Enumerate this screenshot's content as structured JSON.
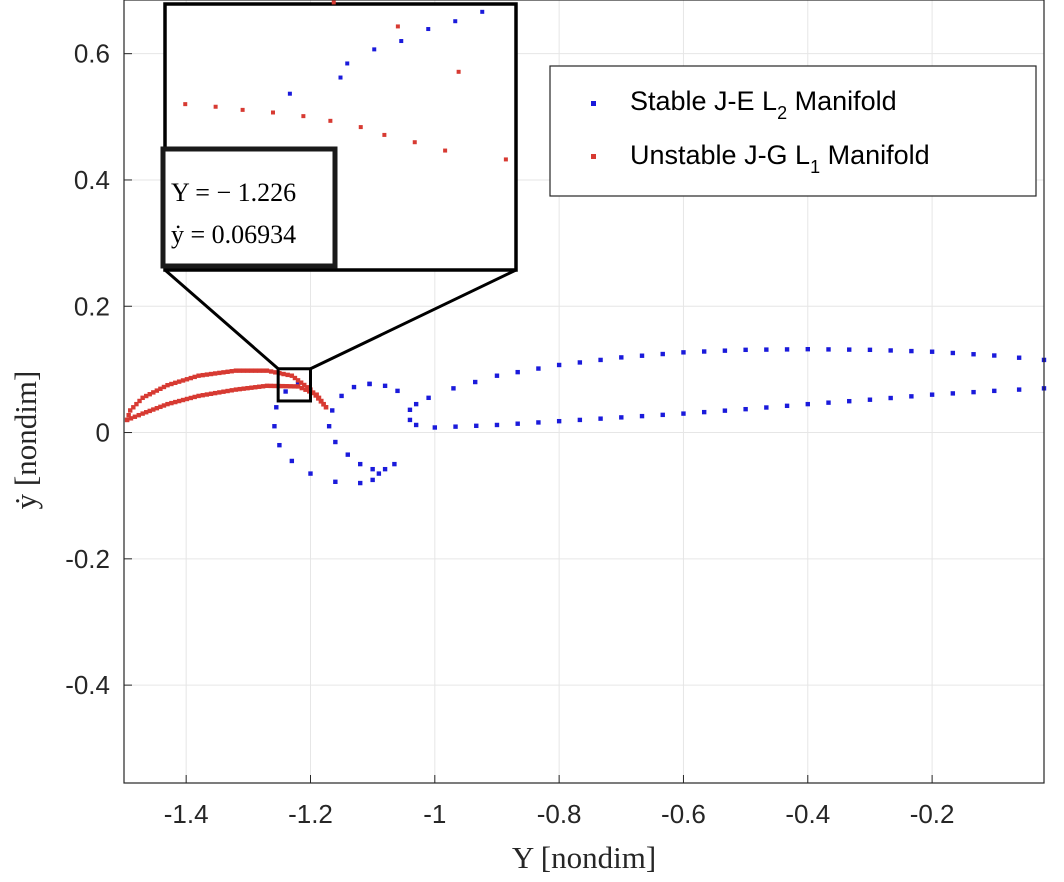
{
  "chart_data": {
    "type": "scatter",
    "title": "",
    "xlabel": "Y [nondim]",
    "ylabel": "ẏ [nondim]",
    "xlim": [
      -1.5,
      -0.02
    ],
    "ylim": [
      -0.555,
      0.685
    ],
    "grid": true,
    "x_ticks": [
      -1.4,
      -1.2,
      -1,
      -0.8,
      -0.6,
      -0.4,
      -0.2
    ],
    "x_tick_labels": [
      "-1.4",
      "-1.2",
      "-1",
      "-0.8",
      "-0.6",
      "-0.4",
      "-0.2"
    ],
    "y_ticks": [
      0.6,
      0.4,
      0.2,
      0,
      -0.2,
      -0.4
    ],
    "y_tick_labels": [
      "0.6",
      "0.4",
      "0.2",
      "0",
      "-0.2",
      "-0.4"
    ],
    "legend": {
      "position": "top-right",
      "entries": [
        {
          "text": "Stable J-E L",
          "subscript": "2",
          "suffix": " Manifold",
          "color": "#1a1adb"
        },
        {
          "text": "Unstable J-G L",
          "subscript": "1",
          "suffix": " Manifold",
          "color": "#d73a32"
        }
      ]
    },
    "series": [
      {
        "name": "Stable J-E L2 Manifold",
        "color": "#1a1adb",
        "polylines": [
          [
            [
              -0.02,
              0.115
            ],
            [
              -0.1,
              0.122
            ],
            [
              -0.2,
              0.128
            ],
            [
              -0.3,
              0.131
            ],
            [
              -0.4,
              0.132
            ],
            [
              -0.5,
              0.131
            ],
            [
              -0.6,
              0.127
            ],
            [
              -0.7,
              0.119
            ],
            [
              -0.8,
              0.107
            ],
            [
              -0.9,
              0.09
            ],
            [
              -0.97,
              0.07
            ],
            [
              -1.01,
              0.055
            ],
            [
              -1.03,
              0.045
            ],
            [
              -1.04,
              0.036
            ]
          ],
          [
            [
              -1.04,
              0.02
            ],
            [
              -1.03,
              0.012
            ],
            [
              -1.0,
              0.008
            ],
            [
              -0.9,
              0.012
            ],
            [
              -0.8,
              0.018
            ],
            [
              -0.7,
              0.024
            ],
            [
              -0.6,
              0.03
            ],
            [
              -0.5,
              0.037
            ],
            [
              -0.4,
              0.045
            ],
            [
              -0.3,
              0.052
            ],
            [
              -0.2,
              0.06
            ],
            [
              -0.1,
              0.066
            ],
            [
              -0.02,
              0.07
            ]
          ],
          [
            [
              -1.105,
              0.077
            ],
            [
              -1.13,
              0.072
            ],
            [
              -1.15,
              0.058
            ],
            [
              -1.165,
              0.035
            ],
            [
              -1.17,
              0.01
            ],
            [
              -1.16,
              -0.015
            ],
            [
              -1.14,
              -0.035
            ],
            [
              -1.12,
              -0.05
            ],
            [
              -1.1,
              -0.058
            ],
            [
              -1.08,
              -0.058
            ],
            [
              -1.065,
              -0.05
            ]
          ],
          [
            [
              -1.22,
              0.078
            ],
            [
              -1.24,
              0.065
            ],
            [
              -1.255,
              0.04
            ],
            [
              -1.258,
              0.01
            ],
            [
              -1.25,
              -0.02
            ],
            [
              -1.23,
              -0.045
            ],
            [
              -1.2,
              -0.065
            ],
            [
              -1.16,
              -0.078
            ],
            [
              -1.12,
              -0.08
            ],
            [
              -1.1,
              -0.075
            ],
            [
              -1.09,
              -0.065
            ]
          ],
          [
            [
              -1.105,
              0.077
            ],
            [
              -1.08,
              0.074
            ],
            [
              -1.06,
              0.066
            ]
          ]
        ]
      },
      {
        "name": "Unstable J-G L1 Manifold",
        "color": "#d73a32",
        "polylines": [
          [
            [
              -1.175,
              0.04
            ],
            [
              -1.2,
              0.068
            ],
            [
              -1.23,
              0.09
            ],
            [
              -1.27,
              0.098
            ],
            [
              -1.32,
              0.098
            ],
            [
              -1.38,
              0.09
            ],
            [
              -1.43,
              0.075
            ],
            [
              -1.47,
              0.055
            ],
            [
              -1.49,
              0.035
            ],
            [
              -1.495,
              0.02
            ]
          ],
          [
            [
              -1.495,
              0.02
            ],
            [
              -1.47,
              0.03
            ],
            [
              -1.43,
              0.045
            ],
            [
              -1.38,
              0.058
            ],
            [
              -1.32,
              0.068
            ],
            [
              -1.27,
              0.074
            ],
            [
              -1.22,
              0.073
            ],
            [
              -1.19,
              0.06
            ],
            [
              -1.175,
              0.04
            ]
          ]
        ]
      }
    ],
    "zoom_box": {
      "x": [
        -1.252,
        -1.2
      ],
      "y": [
        0.05,
        0.101
      ]
    },
    "inset": {
      "xlim": [
        -1.252,
        -1.2
      ],
      "ylim": [
        0.05,
        0.101
      ],
      "blue_points": [
        [
          -1.205,
          0.0995
        ],
        [
          -1.209,
          0.0977
        ],
        [
          -1.213,
          0.0962
        ],
        [
          -1.217,
          0.0939
        ],
        [
          -1.221,
          0.0923
        ],
        [
          -1.225,
          0.0896
        ],
        [
          -1.2335,
          0.0838
        ],
        [
          -1.226,
          0.0869
        ]
      ],
      "red_points": [
        [
          -1.249,
          0.0818
        ],
        [
          -1.2445,
          0.0813
        ],
        [
          -1.2405,
          0.0807
        ],
        [
          -1.236,
          0.0802
        ],
        [
          -1.2315,
          0.0795
        ],
        [
          -1.2275,
          0.0786
        ],
        [
          -1.223,
          0.0774
        ],
        [
          -1.2195,
          0.0759
        ],
        [
          -1.215,
          0.0745
        ],
        [
          -1.2105,
          0.0729
        ],
        [
          -1.2085,
          0.088
        ],
        [
          -1.2175,
          0.0967
        ],
        [
          -1.227,
          0.1013
        ],
        [
          -1.2015,
          0.0712
        ]
      ]
    },
    "annotation": {
      "line1": "Y = − 1.226",
      "line2": "ẏ = 0.06934"
    }
  }
}
